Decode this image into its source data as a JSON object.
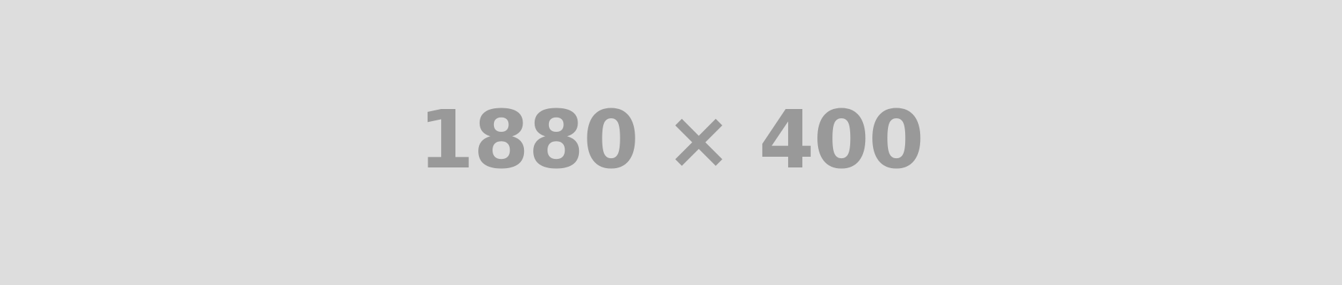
{
  "placeholder": {
    "text": "1880 × 400",
    "background_color": "#dddddd",
    "text_color": "#999999"
  }
}
